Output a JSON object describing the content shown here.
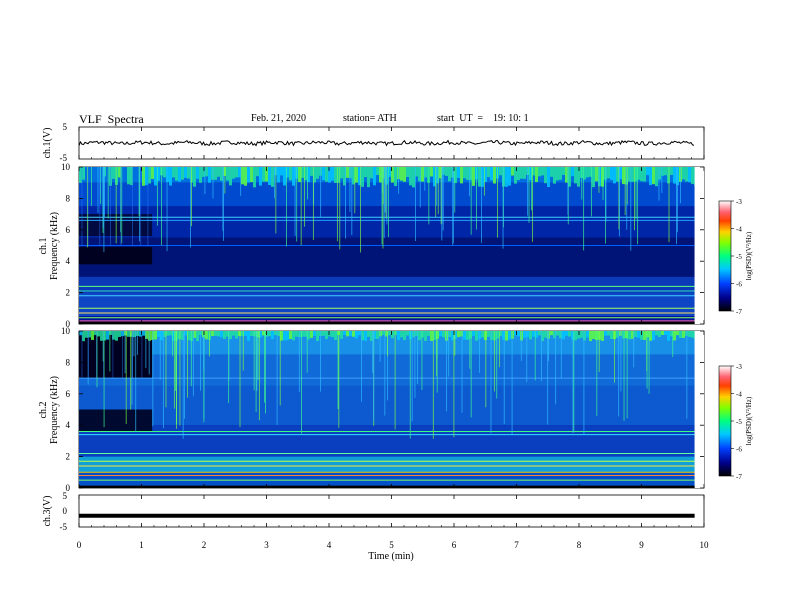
{
  "header": {
    "title": "VLF  Spectra",
    "date": "Feb. 21, 2020",
    "station": "station= ATH",
    "start": "start  UT  =    19: 10: 1"
  },
  "colors": {
    "waveform": "#000000",
    "spectrogram_background": "#000040"
  },
  "chart_data": [
    {
      "type": "line",
      "panel": "ch1-waveform",
      "ylabel": "ch.1(V)",
      "ylim": [
        -5,
        5
      ],
      "yticks": [
        "5",
        "-5"
      ],
      "xlim": [
        0,
        10
      ],
      "x_extent_data": [
        0,
        9.85
      ],
      "approx_level": 0,
      "approx_amplitude": 0.6
    },
    {
      "type": "heatmap",
      "panel": "ch1-spectrogram",
      "ylabel": "ch.1\nFrequency  (kHz)",
      "ylim": [
        0,
        10
      ],
      "yticks": [
        "0",
        "2",
        "4",
        "6",
        "8",
        "10"
      ],
      "xlim": [
        0,
        10
      ],
      "x_extent_data": [
        0,
        9.85
      ],
      "colorbar": {
        "label": "log(PSD)(V²/Hz)",
        "range": [
          -7,
          -3
        ],
        "ticks": [
          "-3",
          "-4",
          "-5",
          "-6",
          "-7"
        ]
      }
    },
    {
      "type": "heatmap",
      "panel": "ch2-spectrogram",
      "ylabel": "ch.2\nFrequency  (kHz)",
      "ylim": [
        0,
        10
      ],
      "yticks": [
        "0",
        "2",
        "4",
        "6",
        "8",
        "10"
      ],
      "xlim": [
        0,
        10
      ],
      "x_extent_data": [
        0,
        9.85
      ],
      "colorbar": {
        "label": "log(PSD)(V²/Hz)",
        "range": [
          -7,
          -3
        ],
        "ticks": [
          "-3",
          "-4",
          "-5",
          "-6",
          "-7"
        ]
      }
    },
    {
      "type": "line",
      "panel": "ch3-waveform",
      "ylabel": "ch.3(V)",
      "ylim": [
        -5,
        5
      ],
      "yticks": [
        "5",
        "0",
        "-5"
      ],
      "xlim": [
        0,
        10
      ],
      "x_extent_data": [
        0,
        9.85
      ],
      "approx_level": -1.5
    }
  ],
  "xaxis": {
    "label": "Time  (min)",
    "ticks": [
      "0",
      "1",
      "2",
      "3",
      "4",
      "5",
      "6",
      "7",
      "8",
      "9",
      "10"
    ]
  },
  "panel_labels": {
    "ch1": "ch.1(V)",
    "ch1_spec_a": "ch.1",
    "ch1_spec_b": "Frequency  (kHz)",
    "ch2_spec_a": "ch.2",
    "ch2_spec_b": "Frequency  (kHz)",
    "ch3": "ch.3(V)",
    "colorbar_label": "log(PSD)(V²/Hz)"
  }
}
